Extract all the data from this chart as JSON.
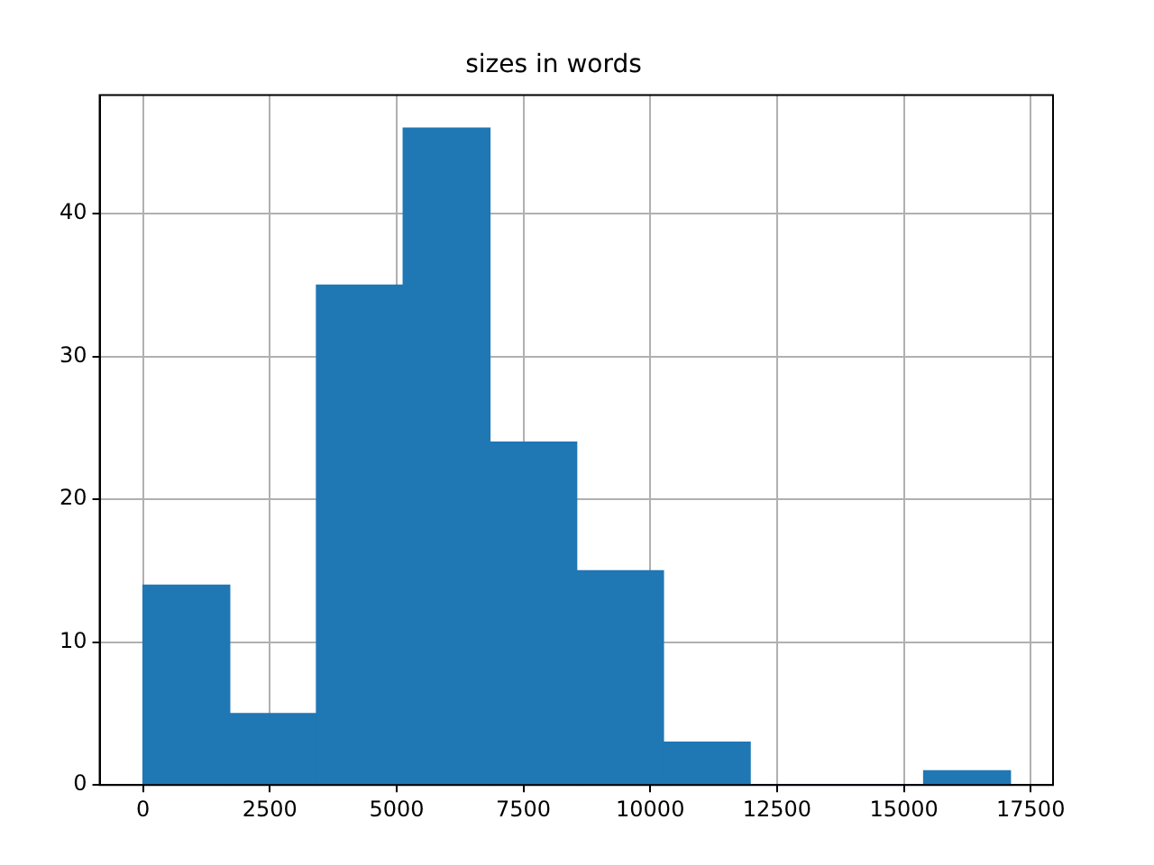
{
  "chart_data": {
    "type": "histogram",
    "title": "sizes in words",
    "bins": [
      0,
      1710,
      3420,
      5130,
      6840,
      8550,
      10260,
      11970,
      13680,
      15390,
      17100
    ],
    "values": [
      14,
      5,
      35,
      46,
      24,
      15,
      3,
      0,
      0,
      1
    ],
    "color": "#1f77b4",
    "xlim": [
      -854,
      17940
    ],
    "xticks": [
      0,
      2500,
      5000,
      7500,
      10000,
      12500,
      15000,
      17500
    ],
    "ylim": [
      0,
      48.3
    ],
    "yticks": [
      0,
      10,
      20,
      30,
      40
    ],
    "grid": true
  }
}
